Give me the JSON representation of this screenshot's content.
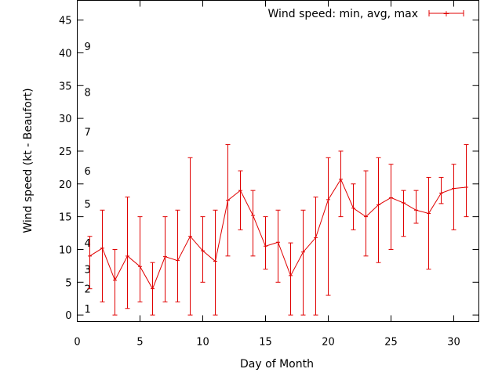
{
  "chart_data": {
    "type": "line",
    "title": "",
    "xlabel": "Day of Month",
    "ylabel": "Wind speed (kt - Beaufort)",
    "xlim": [
      0,
      32
    ],
    "ylim": [
      -1,
      48
    ],
    "xticks": [
      0,
      5,
      10,
      15,
      20,
      25,
      30
    ],
    "yticks": [
      0,
      5,
      10,
      15,
      20,
      25,
      30,
      35,
      40,
      45
    ],
    "grid": false,
    "legend_position": "top-right",
    "beaufort_labels": [
      {
        "label": "1",
        "y": 1
      },
      {
        "label": "2",
        "y": 4
      },
      {
        "label": "3",
        "y": 7
      },
      {
        "label": "4",
        "y": 11
      },
      {
        "label": "5",
        "y": 17
      },
      {
        "label": "6",
        "y": 22
      },
      {
        "label": "7",
        "y": 28
      },
      {
        "label": "8",
        "y": 34
      },
      {
        "label": "9",
        "y": 41
      }
    ],
    "series": [
      {
        "name": "Wind speed: min, avg, max",
        "color": "#e00000",
        "x": [
          1,
          2,
          3,
          4,
          5,
          6,
          7,
          8,
          9,
          10,
          11,
          12,
          13,
          14,
          15,
          16,
          17,
          18,
          19,
          20,
          21,
          22,
          23,
          24,
          25,
          26,
          27,
          28,
          29,
          30,
          31
        ],
        "avg": [
          9,
          10.2,
          5.3,
          9,
          7.4,
          4,
          8.9,
          8.3,
          12,
          9.8,
          8.2,
          17.5,
          19,
          15.2,
          10.5,
          11.1,
          6,
          9.6,
          11.8,
          17.6,
          20.7,
          16.3,
          15,
          16.8,
          17.9,
          17.1,
          16,
          15.5,
          18.6,
          19.3,
          19.5
        ],
        "min": [
          4,
          2,
          0,
          1,
          2,
          0,
          2,
          2,
          0,
          5,
          0,
          9,
          13,
          9,
          7,
          5,
          0,
          0,
          0,
          3,
          15,
          13,
          9,
          8,
          10,
          12,
          14,
          7,
          17,
          13,
          15
        ],
        "max": [
          12,
          16,
          10,
          18,
          15,
          8,
          15,
          16,
          24,
          15,
          16,
          26,
          22,
          19,
          15,
          16,
          11,
          16,
          18,
          24,
          25,
          20,
          22,
          24,
          23,
          19,
          19,
          21,
          21,
          23,
          26
        ]
      }
    ]
  }
}
